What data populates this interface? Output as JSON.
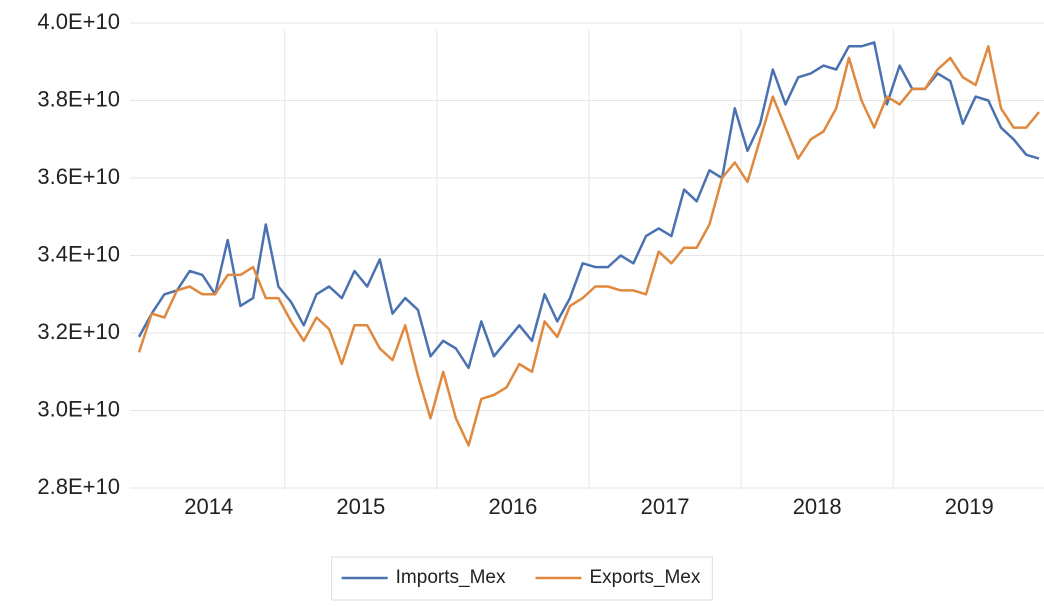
{
  "chart_data": {
    "type": "line",
    "categories": [
      "2014",
      null,
      null,
      null,
      null,
      null,
      null,
      null,
      null,
      null,
      null,
      null,
      "2015",
      null,
      null,
      null,
      null,
      null,
      null,
      null,
      null,
      null,
      null,
      null,
      "2016",
      null,
      null,
      null,
      null,
      null,
      null,
      null,
      null,
      null,
      null,
      null,
      "2017",
      null,
      null,
      null,
      null,
      null,
      null,
      null,
      null,
      null,
      null,
      null,
      "2018",
      null,
      null,
      null,
      null,
      null,
      null,
      null,
      null,
      null,
      null,
      null,
      "2019",
      null,
      null,
      null,
      null,
      null,
      null,
      null,
      null,
      null,
      null,
      null
    ],
    "series": [
      {
        "name": "Imports_Mex",
        "color": "#4a72b0",
        "values": [
          31900000000.0,
          32500000000.0,
          33000000000.0,
          33100000000.0,
          33600000000.0,
          33500000000.0,
          33000000000.0,
          34400000000.0,
          32700000000.0,
          32900000000.0,
          34800000000.0,
          33200000000.0,
          32800000000.0,
          32200000000.0,
          33000000000.0,
          33200000000.0,
          32900000000.0,
          33600000000.0,
          33200000000.0,
          33900000000.0,
          32500000000.0,
          32900000000.0,
          32600000000.0,
          31400000000.0,
          31800000000.0,
          31600000000.0,
          31100000000.0,
          32300000000.0,
          31400000000.0,
          31800000000.0,
          32200000000.0,
          31800000000.0,
          33000000000.0,
          32300000000.0,
          32900000000.0,
          33800000000.0,
          33700000000.0,
          33700000000.0,
          34000000000.0,
          33800000000.0,
          34500000000.0,
          34700000000.0,
          34500000000.0,
          35700000000.0,
          35400000000.0,
          36200000000.0,
          36000000000.0,
          37800000000.0,
          36700000000.0,
          37400000000.0,
          38800000000.0,
          37900000000.0,
          38600000000.0,
          38700000000.0,
          38900000000.0,
          38800000000.0,
          39400000000.0,
          39400000000.0,
          39500000000.0,
          37900000000.0,
          38900000000.0,
          38300000000.0,
          38300000000.0,
          38700000000.0,
          38500000000.0,
          37400000000.0,
          38100000000.0,
          38000000000.0,
          37300000000.0,
          37000000000.0,
          36600000000.0,
          36500000000.0
        ]
      },
      {
        "name": "Exports_Mex",
        "color": "#e0893e",
        "values": [
          31500000000.0,
          32500000000.0,
          32400000000.0,
          33100000000.0,
          33200000000.0,
          33000000000.0,
          33000000000.0,
          33500000000.0,
          33500000000.0,
          33700000000.0,
          32900000000.0,
          32900000000.0,
          32300000000.0,
          31800000000.0,
          32400000000.0,
          32100000000.0,
          31200000000.0,
          32200000000.0,
          32200000000.0,
          31600000000.0,
          31300000000.0,
          32200000000.0,
          30900000000.0,
          29800000000.0,
          31000000000.0,
          29800000000.0,
          29100000000.0,
          30300000000.0,
          30400000000.0,
          30600000000.0,
          31200000000.0,
          31000000000.0,
          32300000000.0,
          31900000000.0,
          32700000000.0,
          32900000000.0,
          33200000000.0,
          33200000000.0,
          33100000000.0,
          33100000000.0,
          33000000000.0,
          34100000000.0,
          33800000000.0,
          34200000000.0,
          34200000000.0,
          34800000000.0,
          36000000000.0,
          36400000000.0,
          35900000000.0,
          37000000000.0,
          38100000000.0,
          37300000000.0,
          36500000000.0,
          37000000000.0,
          37200000000.0,
          37800000000.0,
          39100000000.0,
          38000000000.0,
          37300000000.0,
          38100000000.0,
          37900000000.0,
          38300000000.0,
          38300000000.0,
          38800000000.0,
          39100000000.0,
          38600000000.0,
          38400000000.0,
          39400000000.0,
          37800000000.0,
          37300000000.0,
          37300000000.0,
          37700000000.0
        ]
      }
    ],
    "ylim": [
      28000000000.0,
      40000000000.0
    ],
    "yticks": [
      {
        "value": 28000000000.0,
        "label": "2.8E+10"
      },
      {
        "value": 30000000000.0,
        "label": "3.0E+10"
      },
      {
        "value": 32000000000.0,
        "label": "3.2E+10"
      },
      {
        "value": 34000000000.0,
        "label": "3.4E+10"
      },
      {
        "value": 36000000000.0,
        "label": "3.6E+10"
      },
      {
        "value": 38000000000.0,
        "label": "3.8E+10"
      },
      {
        "value": 40000000000.0,
        "label": "4.0E+10"
      }
    ],
    "grid": true,
    "legend": "bottom"
  }
}
